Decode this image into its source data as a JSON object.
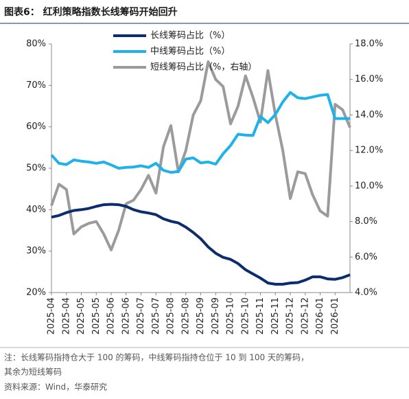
{
  "chart_data": {
    "type": "line",
    "title": "图表6：  红利策略指数长线筹码开始回升",
    "note": [
      "注：长线筹码指持仓大于 100 的筹码，中线筹码指持仓位于 10 到 100 天的筹码，",
      "其余为短线筹码"
    ],
    "source": "资料来源：Wind，华泰研究",
    "categories": [
      "2025-04",
      null,
      "2025-04",
      null,
      "2025-05",
      null,
      "2025-05",
      null,
      "2025-06",
      null,
      "2025-06",
      null,
      "2025-07",
      null,
      "2025-07",
      null,
      "2025-08",
      null,
      "2025-08",
      null,
      "2025-09",
      null,
      "2025-09",
      null,
      "2025-10",
      null,
      "2025-10",
      null,
      "2025-11",
      null,
      "2025-11",
      null,
      "2025-12",
      null,
      "2025-12",
      null,
      "2026-01",
      null,
      "2026-01",
      null,
      null
    ],
    "series": [
      {
        "name": "长线筹码占比（%）",
        "color": "#0b2d6e",
        "values": [
          38.2,
          38.6,
          39.3,
          39.8,
          40.0,
          40.3,
          40.8,
          41.2,
          41.3,
          41.2,
          40.8,
          40.0,
          39.5,
          39.2,
          38.8,
          37.8,
          37.2,
          36.8,
          35.8,
          34.5,
          33.0,
          31.0,
          29.5,
          28.5,
          28.0,
          27.0,
          25.5,
          24.5,
          23.5,
          22.3,
          22.0,
          22.0,
          22.3,
          22.4,
          23.0,
          23.8,
          23.8,
          23.3,
          23.2,
          23.6,
          24.3
        ]
      },
      {
        "name": "中线筹码占比（%）",
        "color": "#1eb1ea",
        "values": [
          53.2,
          51.2,
          50.9,
          52.0,
          51.7,
          51.5,
          51.2,
          51.5,
          50.8,
          50.0,
          50.2,
          50.3,
          50.6,
          50.2,
          51.2,
          49.5,
          49.0,
          49.2,
          52.2,
          52.5,
          51.3,
          51.5,
          51.0,
          53.5,
          55.5,
          58.2,
          58.0,
          57.9,
          62.5,
          61.0,
          63.0,
          66.0,
          68.3,
          67.0,
          66.8,
          67.2,
          67.6,
          67.8,
          62.0,
          62.0,
          62.0
        ]
      },
      {
        "name": "短线筹码占比（%，右轴）",
        "color": "#9b9b9b",
        "axis": "y2",
        "values": [
          8.9,
          10.1,
          9.8,
          7.3,
          7.7,
          7.9,
          8.0,
          7.3,
          6.4,
          7.5,
          9.0,
          9.2,
          9.8,
          10.6,
          9.6,
          12.2,
          13.4,
          10.8,
          12.0,
          14.0,
          14.8,
          17.0,
          16.0,
          15.6,
          13.5,
          14.5,
          16.2,
          15.0,
          13.6,
          16.5,
          14.0,
          12.0,
          9.3,
          10.8,
          10.7,
          9.5,
          8.6,
          8.3,
          14.6,
          14.3,
          13.3
        ]
      }
    ],
    "ylim": [
      20,
      80
    ],
    "yticks": [
      {
        "value": 20,
        "label": "20%"
      },
      {
        "value": 30,
        "label": "30%"
      },
      {
        "value": 40,
        "label": "40%"
      },
      {
        "value": 50,
        "label": "50%"
      },
      {
        "value": 60,
        "label": "60%"
      },
      {
        "value": 70,
        "label": "70%"
      },
      {
        "value": 80,
        "label": "80%"
      }
    ],
    "y2lim": [
      4,
      18
    ],
    "y2ticks": [
      {
        "value": 4,
        "label": "4.0%"
      },
      {
        "value": 6,
        "label": "6.0%"
      },
      {
        "value": 8,
        "label": "8.0%"
      },
      {
        "value": 10,
        "label": "10.0%"
      },
      {
        "value": 12,
        "label": "12.0%"
      },
      {
        "value": 14,
        "label": "14.0%"
      },
      {
        "value": 16,
        "label": "16.0%"
      },
      {
        "value": 18,
        "label": "18.0%"
      }
    ],
    "legend": "top"
  }
}
